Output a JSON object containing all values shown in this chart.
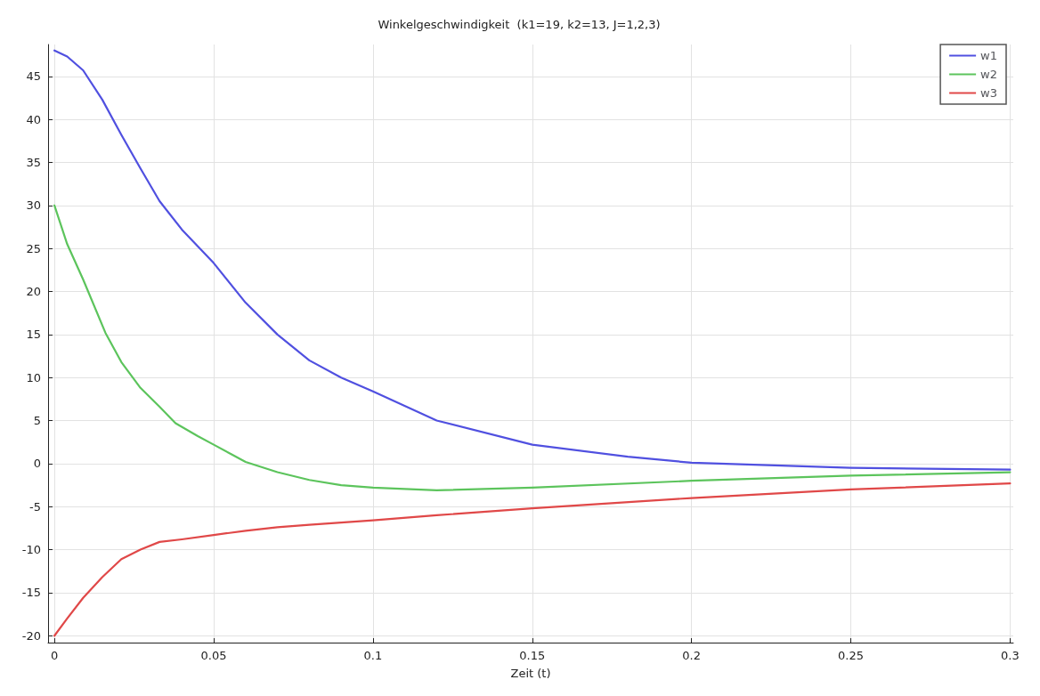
{
  "chart_data": {
    "type": "line",
    "title": "Winkelgeschwindigkeit  (k1=19, k2=13, J=1,2,3)",
    "xlabel": "Zeit (t)",
    "xlim": [
      -0.002,
      0.301
    ],
    "xticks": [
      0,
      0.05,
      0.1,
      0.15,
      0.2,
      0.25,
      0.3
    ],
    "ylim": [
      -20.8,
      48.7
    ],
    "yticks": [
      -20,
      -15,
      -10,
      -5,
      0,
      5,
      10,
      15,
      20,
      25,
      30,
      35,
      40,
      45
    ],
    "grid": true,
    "legend": "top right",
    "marker": "none",
    "line_style": "solid",
    "series": [
      {
        "name": "w1",
        "color": "#5050e0",
        "x": [
          0,
          0.004,
          0.009,
          0.015,
          0.021,
          0.027,
          0.033,
          0.04,
          0.05,
          0.06,
          0.07,
          0.08,
          0.09,
          0.1,
          0.12,
          0.15,
          0.18,
          0.2,
          0.25,
          0.3
        ],
        "values": [
          48,
          47.3,
          45.7,
          42.3,
          38.2,
          34.3,
          30.5,
          27.2,
          23.3,
          18.7,
          15,
          12,
          10,
          8.4,
          5,
          2.2,
          0.8,
          0.1,
          -0.5,
          -0.7
        ]
      },
      {
        "name": "w2",
        "color": "#5cc45c",
        "x": [
          0,
          0.004,
          0.009,
          0.016,
          0.021,
          0.027,
          0.033,
          0.038,
          0.045,
          0.05,
          0.06,
          0.07,
          0.08,
          0.09,
          0.1,
          0.12,
          0.15,
          0.2,
          0.25,
          0.3
        ],
        "values": [
          30,
          25.5,
          21.4,
          15.2,
          11.8,
          8.8,
          6.6,
          4.7,
          3.2,
          2.2,
          0.2,
          -1,
          -1.9,
          -2.5,
          -2.8,
          -3.1,
          -2.8,
          -2,
          -1.4,
          -1
        ]
      },
      {
        "name": "w3",
        "color": "#e04848",
        "x": [
          0,
          0.004,
          0.009,
          0.015,
          0.021,
          0.027,
          0.033,
          0.04,
          0.05,
          0.06,
          0.07,
          0.08,
          0.1,
          0.12,
          0.15,
          0.2,
          0.25,
          0.3
        ],
        "values": [
          -20,
          -18,
          -15.6,
          -13.2,
          -11.1,
          -10,
          -9.1,
          -8.8,
          -8.3,
          -7.8,
          -7.4,
          -7.1,
          -6.6,
          -6,
          -5.2,
          -4,
          -3,
          -2.3
        ]
      }
    ]
  }
}
